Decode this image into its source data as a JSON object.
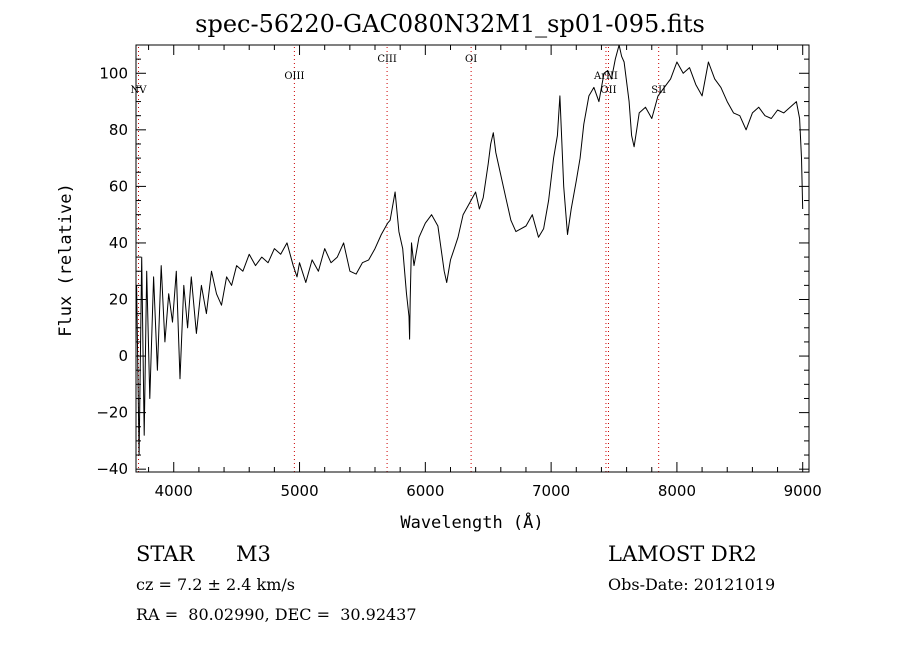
{
  "title": "spec-56220-GAC080N32M1_sp01-095.fits",
  "info": {
    "class_label": "STAR",
    "subclass_label": "M3",
    "survey": "LAMOST DR2",
    "cz": "cz = 7.2 ± 2.4 km/s",
    "obs_date": "Obs-Date: 20121019",
    "radec": "RA =  80.02990, DEC =  30.92437"
  },
  "colors": {
    "spectrum": "#000000",
    "line_marker": "#cc0000",
    "axes": "#000000"
  },
  "chart_data": {
    "type": "line",
    "title": "spec-56220-GAC080N32M1_sp01-095.fits",
    "xlabel": "Wavelength (Å)",
    "ylabel": "Flux (relative)",
    "xlim": [
      3700,
      9050
    ],
    "ylim": [
      -41,
      110
    ],
    "xticks": [
      {
        "v": 4000,
        "label": "4000"
      },
      {
        "v": 5000,
        "label": "5000"
      },
      {
        "v": 6000,
        "label": "6000"
      },
      {
        "v": 7000,
        "label": "7000"
      },
      {
        "v": 8000,
        "label": "8000"
      },
      {
        "v": 9000,
        "label": "9000"
      }
    ],
    "yticks": [
      {
        "v": -40,
        "label": "−40"
      },
      {
        "v": -20,
        "label": "−20"
      },
      {
        "v": 0,
        "label": "0"
      },
      {
        "v": 20,
        "label": "20"
      },
      {
        "v": 40,
        "label": "40"
      },
      {
        "v": 60,
        "label": "60"
      },
      {
        "v": 80,
        "label": "80"
      },
      {
        "v": 100,
        "label": "100"
      }
    ],
    "lines": [
      {
        "name": "NV",
        "wavelength": 3720,
        "label_y": 93
      },
      {
        "name": "OIII",
        "wavelength": 4959,
        "label_y": 98
      },
      {
        "name": "CIII",
        "wavelength": 5696,
        "label_y": 104
      },
      {
        "name": "OI",
        "wavelength": 6364,
        "label_y": 104
      },
      {
        "name": "ArIII",
        "wavelength": 7436,
        "label_y": 98
      },
      {
        "name": "OII",
        "wavelength": 7456,
        "label_y": 93
      },
      {
        "name": "SII",
        "wavelength": 7855,
        "label_y": 93
      }
    ],
    "series": [
      {
        "x": [
          3705,
          3725,
          3745,
          3765,
          3785,
          3810,
          3840,
          3870,
          3900,
          3930,
          3960,
          3990,
          4020,
          4050,
          4080,
          4110,
          4140,
          4180,
          4220,
          4260,
          4300,
          4340,
          4380,
          4420,
          4460,
          4500,
          4550,
          4600,
          4650,
          4700,
          4750,
          4800,
          4850,
          4900,
          4950,
          4980,
          5000,
          5050,
          5100,
          5150,
          5200,
          5250,
          5300,
          5350,
          5400,
          5450,
          5500,
          5550,
          5600,
          5650,
          5700,
          5720,
          5760,
          5790,
          5820,
          5850,
          5870,
          5875,
          5880,
          5890,
          5910,
          5950,
          6000,
          6050,
          6100,
          6150,
          6170,
          6200,
          6230,
          6260,
          6300,
          6350,
          6400,
          6430,
          6460,
          6500,
          6520,
          6540,
          6560,
          6600,
          6640,
          6680,
          6720,
          6760,
          6800,
          6850,
          6900,
          6940,
          6980,
          7020,
          7050,
          7070,
          7100,
          7130,
          7160,
          7200,
          7230,
          7260,
          7300,
          7340,
          7380,
          7420,
          7450,
          7480,
          7510,
          7540,
          7560,
          7580,
          7600,
          7620,
          7640,
          7660,
          7680,
          7700,
          7750,
          7800,
          7850,
          7900,
          7950,
          8000,
          8050,
          8100,
          8150,
          8200,
          8250,
          8300,
          8350,
          8400,
          8450,
          8500,
          8550,
          8600,
          8650,
          8700,
          8750,
          8800,
          8850,
          8900,
          8950,
          8975,
          8990,
          9000
        ],
        "y": [
          25,
          -35,
          35,
          -28,
          30,
          -15,
          28,
          -5,
          32,
          5,
          22,
          12,
          30,
          -8,
          25,
          10,
          28,
          8,
          25,
          15,
          30,
          22,
          18,
          28,
          25,
          32,
          30,
          36,
          32,
          35,
          33,
          38,
          36,
          40,
          32,
          28,
          33,
          26,
          34,
          30,
          38,
          33,
          35,
          40,
          30,
          29,
          33,
          34,
          38,
          43,
          47,
          48,
          58,
          44,
          38,
          22,
          14,
          6,
          20,
          40,
          32,
          42,
          47,
          50,
          46,
          30,
          26,
          34,
          38,
          42,
          50,
          54,
          58,
          52,
          56,
          68,
          75,
          79,
          72,
          64,
          56,
          48,
          44,
          45,
          46,
          50,
          42,
          45,
          55,
          70,
          78,
          92,
          60,
          43,
          52,
          62,
          70,
          82,
          92,
          95,
          90,
          100,
          101,
          98,
          105,
          110,
          106,
          104,
          97,
          90,
          78,
          74,
          80,
          86,
          88,
          84,
          92,
          95,
          98,
          104,
          100,
          102,
          96,
          92,
          104,
          98,
          95,
          90,
          86,
          85,
          80,
          86,
          88,
          85,
          84,
          87,
          86,
          88,
          90,
          84,
          70,
          52
        ]
      }
    ]
  }
}
